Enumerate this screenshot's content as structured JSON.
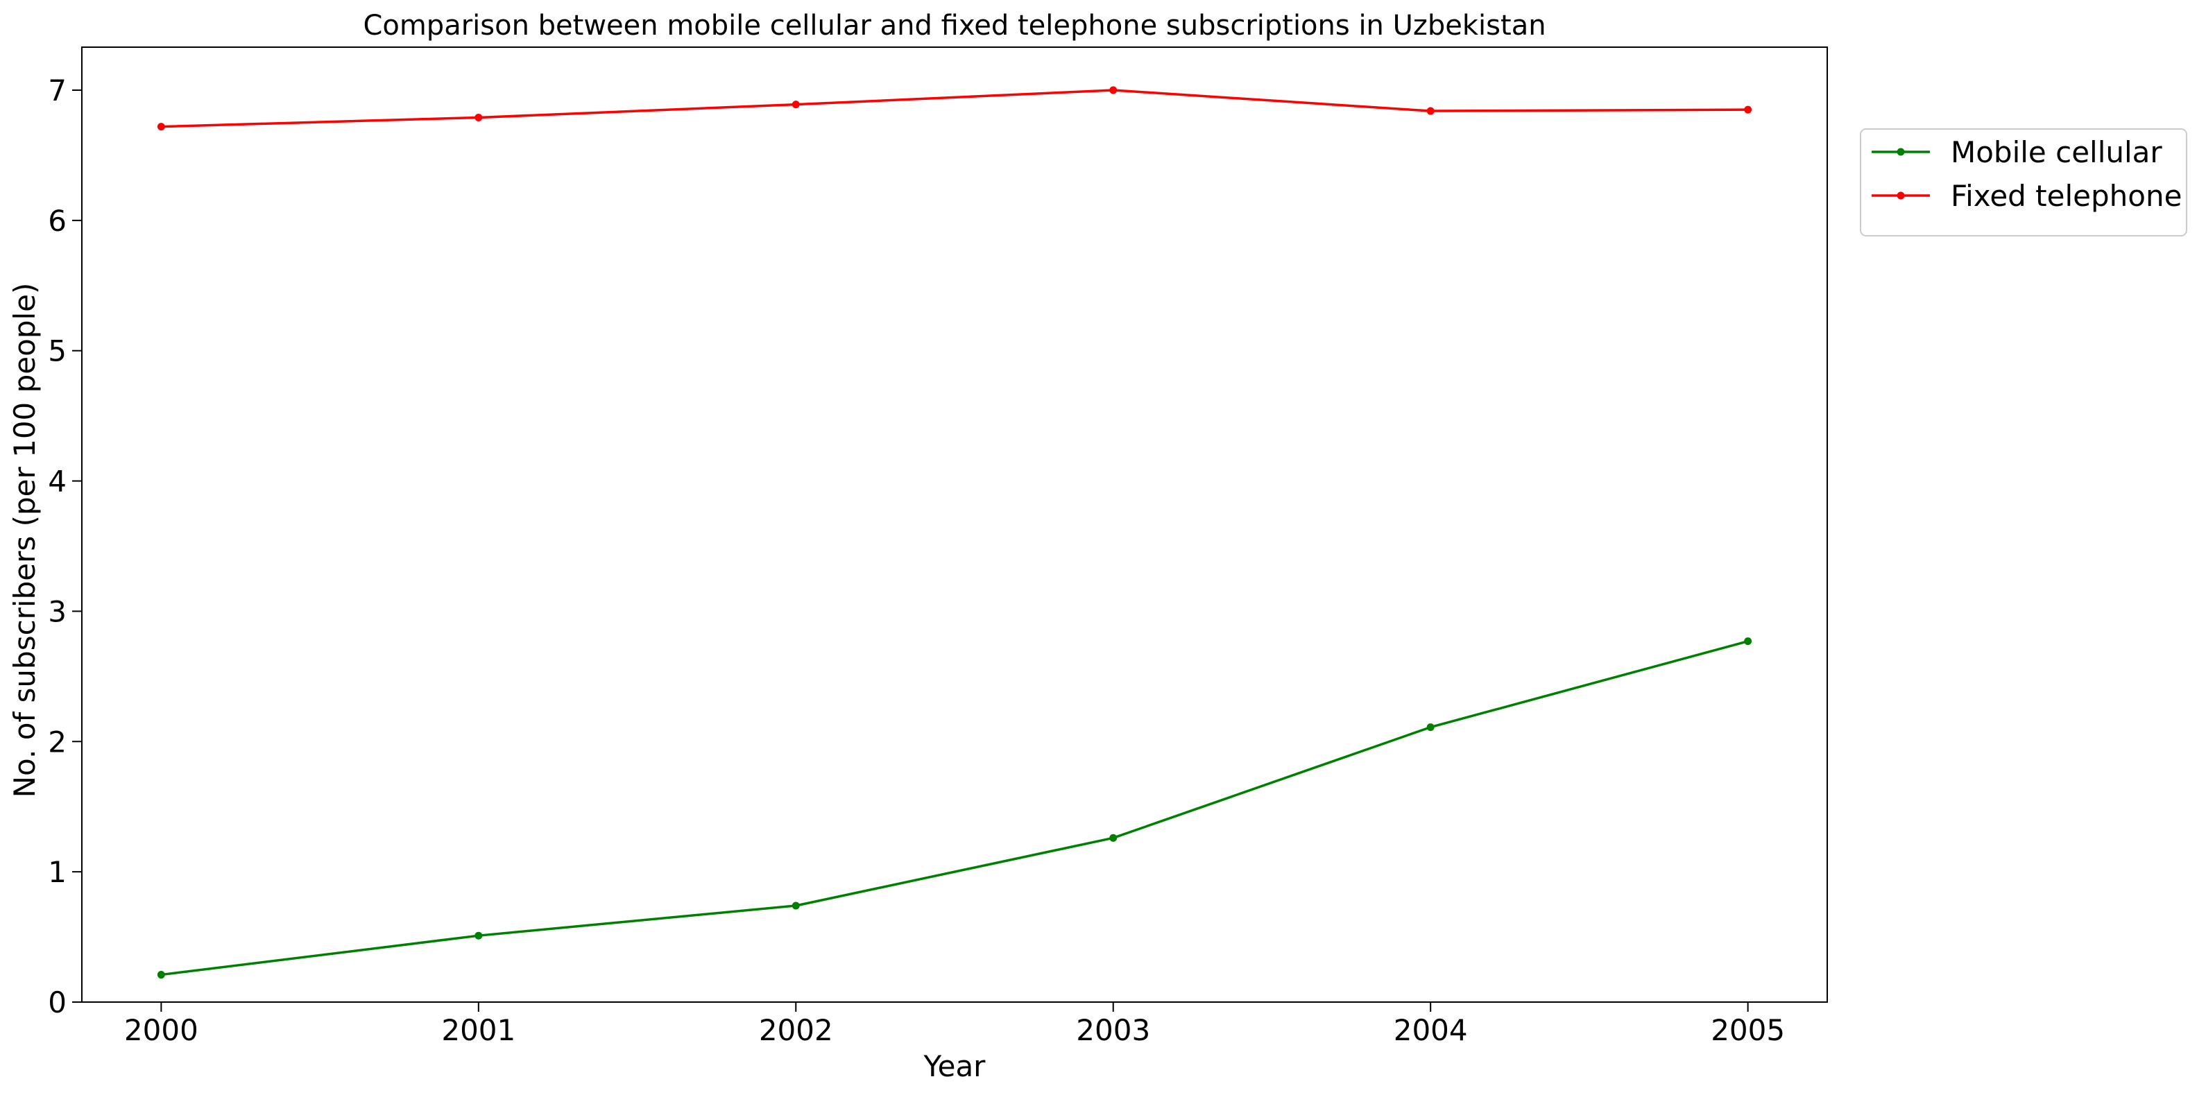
{
  "chart_data": {
    "type": "line",
    "title": "Comparison between mobile cellular and fixed telephone subscriptions in Uzbekistan",
    "xlabel": "Year",
    "ylabel": "No. of subscribers (per 100 people)",
    "x": [
      2000,
      2001,
      2002,
      2003,
      2004,
      2005
    ],
    "xlim": [
      1999.75,
      2005.25
    ],
    "ylim": [
      0,
      7.33
    ],
    "xticks": [
      2000,
      2001,
      2002,
      2003,
      2004,
      2005
    ],
    "yticks": [
      0,
      1,
      2,
      3,
      4,
      5,
      6,
      7
    ],
    "grid": false,
    "legend_position": "upper-right-outside",
    "series": [
      {
        "name": "Mobile cellular",
        "color": "#008000",
        "marker": "dot",
        "values": [
          0.21,
          0.51,
          0.74,
          1.26,
          2.11,
          2.77
        ]
      },
      {
        "name": "Fixed telephone",
        "color": "#ff0000",
        "marker": "dot",
        "values": [
          6.72,
          6.79,
          6.89,
          7.0,
          6.84,
          6.85
        ]
      }
    ]
  }
}
